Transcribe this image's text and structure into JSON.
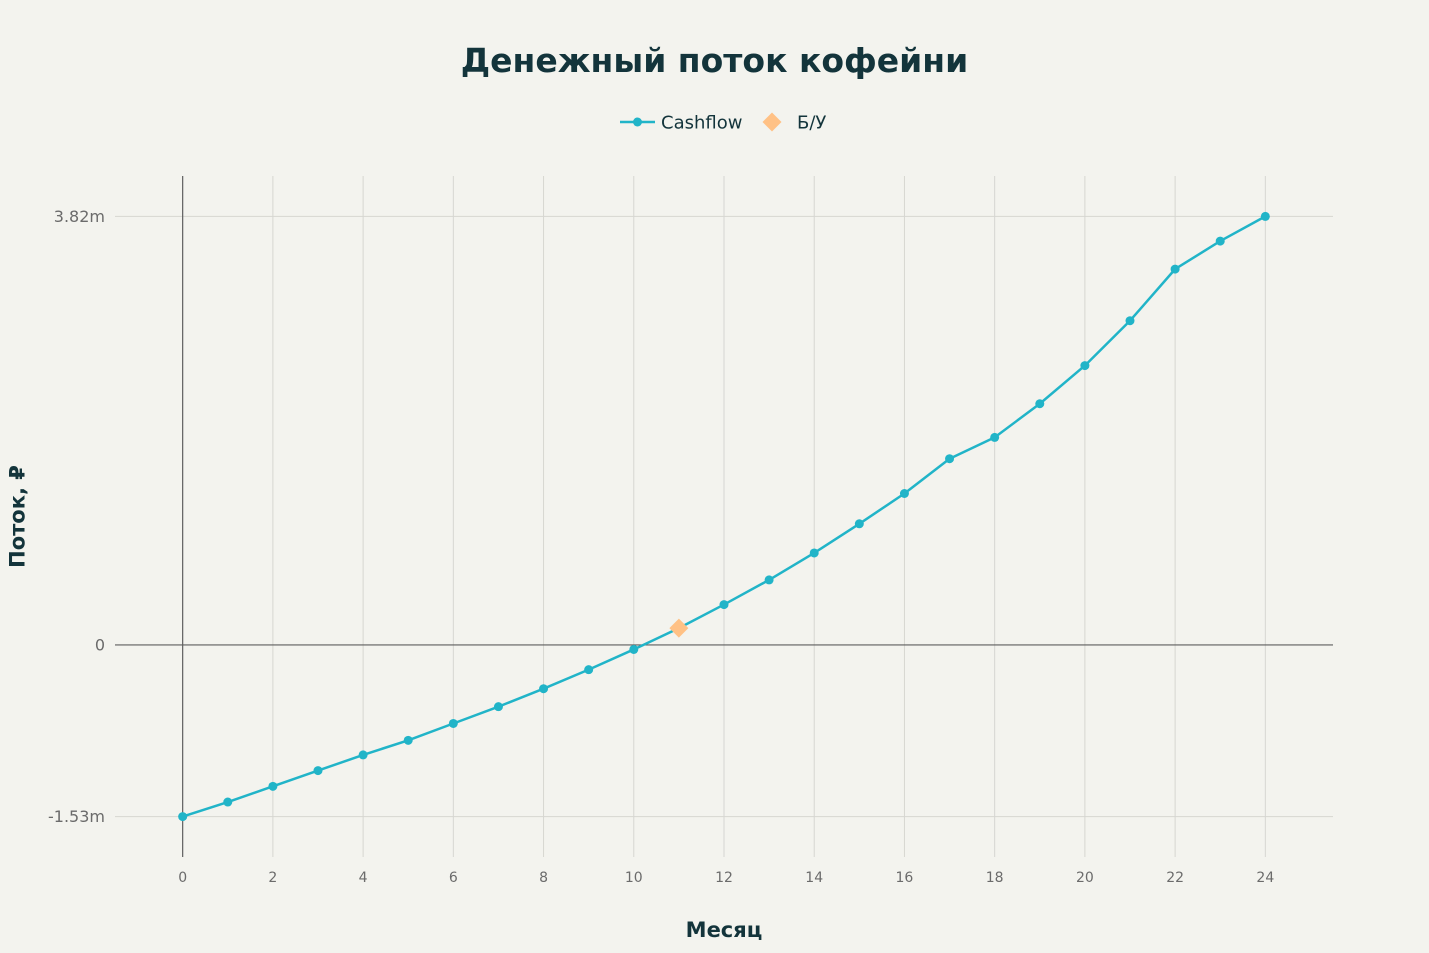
{
  "chart_data": {
    "type": "line",
    "title": "Денежный поток кофейни",
    "xlabel": "Месяц",
    "ylabel": "Поток, ₽",
    "xlim": [
      -1.5,
      25.5
    ],
    "ylim": [
      -1890000,
      4180000
    ],
    "xticks": [
      0,
      2,
      4,
      6,
      8,
      10,
      12,
      14,
      16,
      18,
      20,
      22,
      24
    ],
    "yticks": [
      -1530000,
      0,
      3820000
    ],
    "ytick_labels": [
      "-1.53m",
      "0",
      "3.82m"
    ],
    "grid": true,
    "legend_position": "top-center",
    "series": [
      {
        "name": "Cashflow",
        "type": "line",
        "marker": "circle",
        "color": "#21b4c8",
        "x": [
          0,
          1,
          2,
          3,
          4,
          5,
          6,
          7,
          8,
          9,
          10,
          11,
          12,
          13,
          14,
          15,
          16,
          17,
          18,
          19,
          20,
          21,
          22,
          23,
          24
        ],
        "y": [
          -1530000,
          -1400000,
          -1260000,
          -1120000,
          -980000,
          -850000,
          -700000,
          -550000,
          -390000,
          -220000,
          -40000,
          150000,
          360000,
          580000,
          820000,
          1080000,
          1350000,
          1660000,
          1850000,
          2150000,
          2490000,
          2890000,
          3350000,
          3600000,
          3820000
        ]
      },
      {
        "name": "Б/У",
        "type": "scatter",
        "marker": "diamond",
        "color": "#ffc185",
        "x": [
          11
        ],
        "y": [
          150000
        ]
      }
    ]
  },
  "colors": {
    "background": "#f3f3ee",
    "text": "#13343b",
    "tick_text": "#6b6b6b",
    "grid": "#d6d6d1",
    "zero_line": "#5e5e5e"
  }
}
